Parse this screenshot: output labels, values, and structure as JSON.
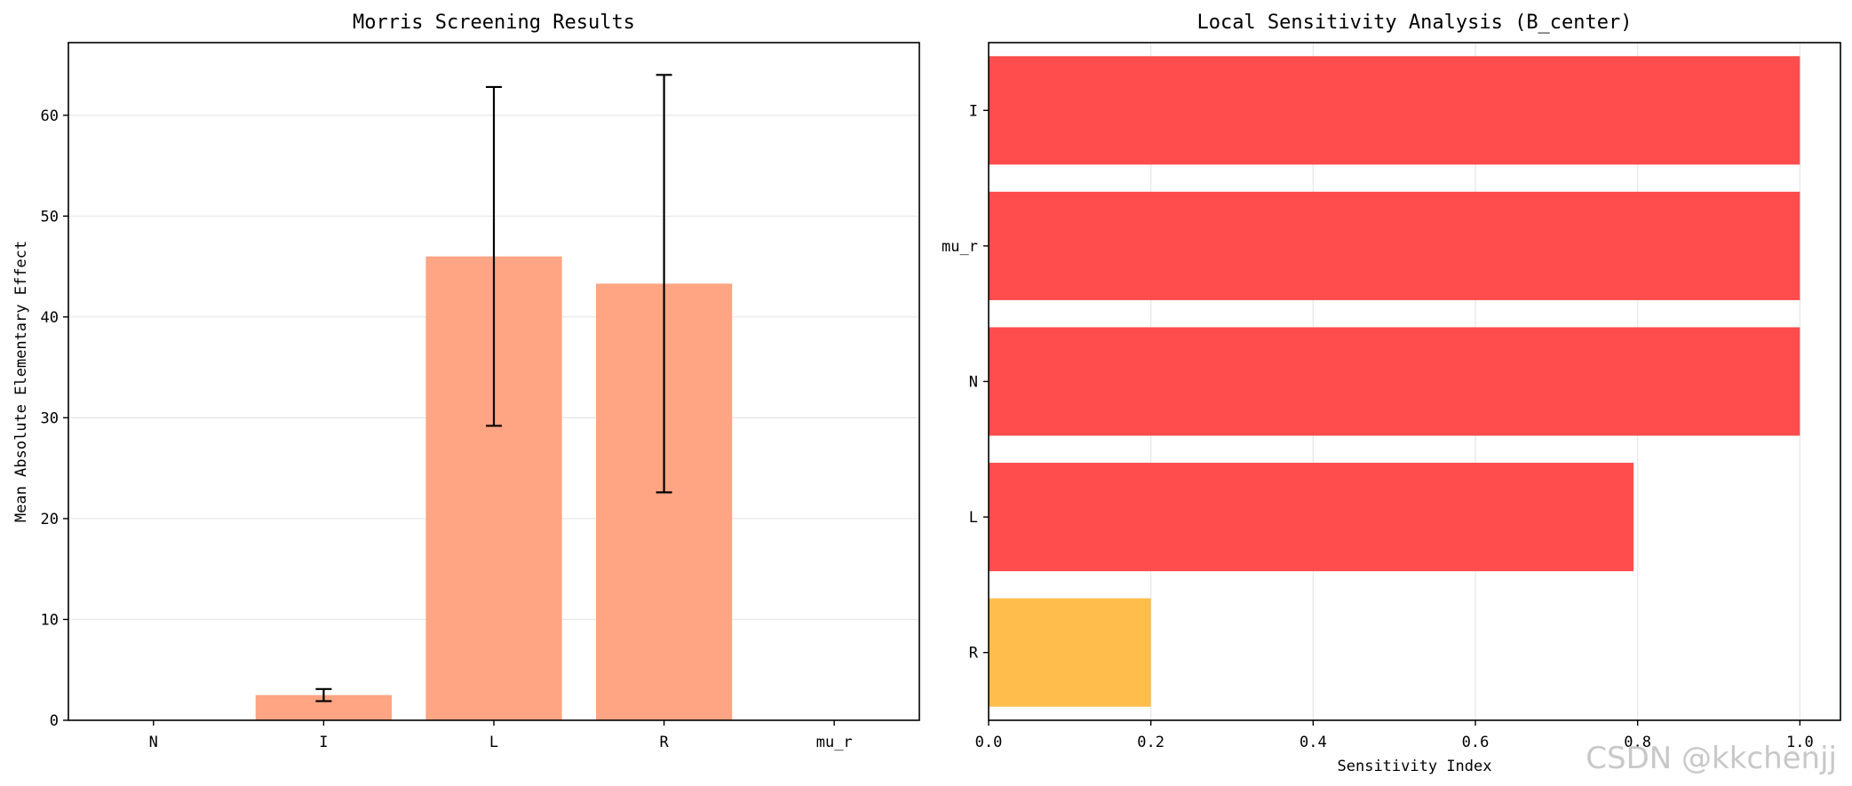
{
  "chart_data": [
    {
      "type": "bar",
      "title": "Morris Screening Results",
      "xlabel": "",
      "ylabel": "Mean Absolute Elementary Effect",
      "categories": [
        "N",
        "I",
        "L",
        "R",
        "mu_r"
      ],
      "values": [
        0,
        2.5,
        46.0,
        43.3,
        0
      ],
      "error": [
        0,
        0.6,
        16.8,
        20.7,
        0
      ],
      "ylim": [
        0,
        67.2
      ],
      "yticks": [
        0,
        10,
        20,
        30,
        40,
        50,
        60
      ],
      "bar_color": "#FFA584",
      "grid": "y"
    },
    {
      "type": "barh",
      "title": "Local Sensitivity Analysis (B_center)",
      "xlabel": "Sensitivity Index",
      "ylabel": "",
      "categories": [
        "I",
        "mu_r",
        "N",
        "L",
        "R"
      ],
      "values": [
        1.0,
        1.0,
        1.0,
        0.795,
        0.2
      ],
      "colors": [
        "#FF4C4C",
        "#FF4C4C",
        "#FF4C4C",
        "#FF4C4C",
        "#FFBD4C"
      ],
      "xlim": [
        0,
        1.05
      ],
      "xticks": [
        0.0,
        0.2,
        0.4,
        0.6,
        0.8,
        1.0
      ],
      "grid": "x"
    }
  ],
  "watermark": "CSDN @kkchenjj"
}
